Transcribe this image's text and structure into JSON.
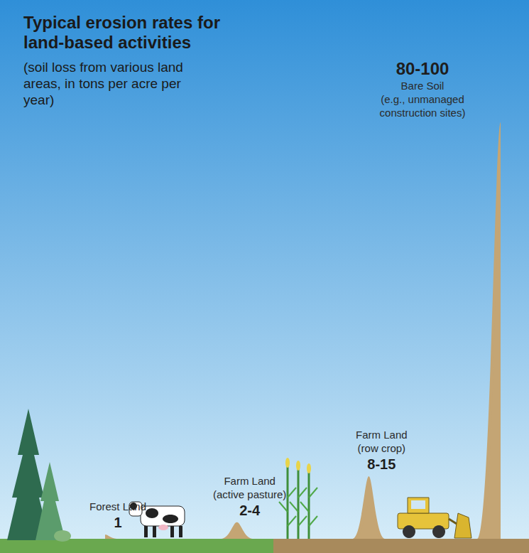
{
  "chart_data": {
    "type": "bar",
    "title": "Typical erosion rates for land-based activities",
    "subtitle": "(soil loss from various land areas, in tons per acre per year)",
    "categories": [
      "Forest Land",
      "Farm Land (active pasture)",
      "Farm Land (row crop)",
      "Bare Soil (e.g., unmanaged construction sites)"
    ],
    "values": [
      1,
      4,
      15,
      100
    ],
    "values_low": [
      1,
      2,
      8,
      80
    ],
    "value_labels": [
      "1",
      "2-4",
      "8-15",
      "80-100"
    ],
    "color": "#c4a574",
    "ylim": [
      0,
      100
    ],
    "data_labels": true,
    "tick_labels": false,
    "grid": false
  }
}
